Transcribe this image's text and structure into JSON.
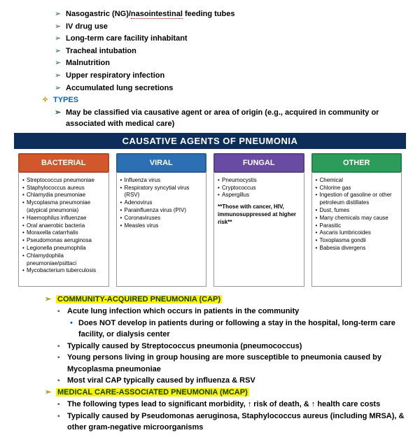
{
  "risk_factors": [
    "Nasogastric (NG)/nasointestinal feeding tubes",
    "IV drug use",
    "Long-term care facility inhabitant",
    "Tracheal intubation",
    "Malnutrition",
    "Upper respiratory infection",
    "Accumulated lung secretions"
  ],
  "risk_underlined_word": "nasointestinal",
  "types_label": "TYPES",
  "types_desc": "May be classified via causative agent or area of origin (e.g., acquired in community or associated with medical care)",
  "table": {
    "title": "CAUSATIVE AGENTS OF PNEUMONIA",
    "columns": [
      {
        "head": "BACTERIAL",
        "head_bg": "#d1572c",
        "items": [
          "Streptococcus pneumoniae",
          "Staphylococcus aureus",
          "Chlamydia pneumoniae",
          "Mycoplasma pneumoniae (atypical pneumonia)",
          "Haemophilus influenzae",
          "Oral anaerobic bacteria",
          "Moraxella catarrhalis",
          "Pseudomonas aeruginosa",
          "Legionella pneumophila",
          "Chlamydophila pneumoniae/psittaci",
          "Mycobacterium tuberculosis"
        ]
      },
      {
        "head": "VIRAL",
        "head_bg": "#2d6fb3",
        "items": [
          "Influenza virus",
          "Respiratory syncytial virus (RSV)",
          "Adenovirus",
          "Parainfluenza virus (PIV)",
          "Coronaviruses",
          "Measles virus"
        ]
      },
      {
        "head": "FUNGAL",
        "head_bg": "#6a4ba3",
        "items": [
          "Pneumocystis",
          "Cryptococcus",
          "Aspergillus"
        ],
        "note": "**Those with cancer, HIV, immunosuppressed at higher risk**"
      },
      {
        "head": "OTHER",
        "head_bg": "#2d9b5a",
        "items": [
          "Chemical",
          "Chlorine gas",
          "Ingestion of gasoline or other petroleum distillates",
          "Dust, fumes",
          "Many chemicals may cause",
          "Parasitic",
          "Ascaris lumbricoides",
          "Toxoplasma gondii",
          "Babesia divergens"
        ]
      }
    ]
  },
  "cap": {
    "heading": "COMMUNITY-ACQUIRED PNEUMONIA (CAP)",
    "bullets": [
      "Acute lung infection which occurs in patients in the community",
      "Typically caused by Streptococcus pneumonia (pneumococcus)",
      "Young persons living in group housing are more susceptible to pneumonia caused by Mycoplasma pneumoniae",
      "Most viral CAP typically caused by influenza & RSV"
    ],
    "sub_bullet": "Does NOT develop in patients during or following a stay in the hospital, long-term care facility, or dialysis center"
  },
  "mcap": {
    "heading": "MEDICAL CARE-ASSOCIATED PNEUMONIA (MCAP)",
    "b1_pre": "The following types lead to significant morbidity, ",
    "b1_mid": " risk of death, & ",
    "b1_post": " health care costs",
    "b2": "Typically caused by Pseudomonas aeruginosa, Staphylococcus aureus (including MRSA), & other gram-negative microorganisms"
  }
}
